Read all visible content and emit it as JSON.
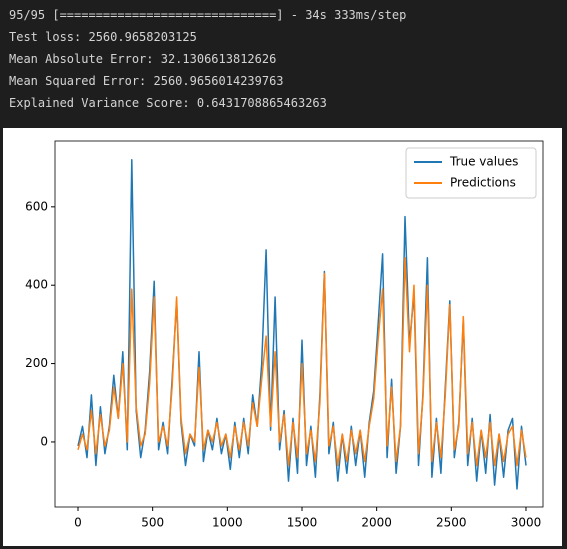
{
  "console": {
    "lines": [
      "95/95 [==============================] - 34s 333ms/step",
      "Test loss: 2560.9658203125",
      "Mean Absolute Error: 32.1306613812626",
      "Mean Squared Error: 2560.9656014239763",
      "Explained Variance Score: 0.6431708865463263"
    ]
  },
  "chart_data": {
    "type": "line",
    "x": [
      0,
      30,
      60,
      90,
      120,
      150,
      180,
      210,
      240,
      270,
      300,
      330,
      360,
      390,
      420,
      450,
      480,
      510,
      540,
      570,
      600,
      630,
      660,
      690,
      720,
      750,
      780,
      810,
      840,
      870,
      900,
      930,
      960,
      990,
      1020,
      1050,
      1080,
      1110,
      1140,
      1170,
      1200,
      1230,
      1260,
      1290,
      1320,
      1350,
      1380,
      1410,
      1440,
      1470,
      1500,
      1530,
      1560,
      1590,
      1620,
      1650,
      1680,
      1710,
      1740,
      1770,
      1800,
      1830,
      1860,
      1890,
      1920,
      1950,
      1980,
      2010,
      2040,
      2070,
      2100,
      2130,
      2160,
      2190,
      2220,
      2250,
      2280,
      2310,
      2340,
      2370,
      2400,
      2430,
      2460,
      2490,
      2520,
      2550,
      2580,
      2610,
      2640,
      2670,
      2700,
      2730,
      2760,
      2790,
      2820,
      2850,
      2880,
      2910,
      2940,
      2970,
      3000
    ],
    "series": [
      {
        "name": "True values",
        "color": "#1f77b4",
        "values": [
          -10,
          40,
          -40,
          120,
          -60,
          90,
          -30,
          40,
          170,
          60,
          230,
          -20,
          720,
          80,
          -40,
          30,
          180,
          410,
          -20,
          50,
          -30,
          160,
          360,
          50,
          -60,
          20,
          -10,
          230,
          -50,
          30,
          -20,
          60,
          -30,
          20,
          -70,
          50,
          -40,
          60,
          -30,
          120,
          40,
          200,
          490,
          30,
          370,
          -20,
          80,
          -100,
          60,
          -80,
          260,
          -60,
          40,
          -90,
          120,
          435,
          -30,
          50,
          -100,
          20,
          -80,
          40,
          -60,
          30,
          -90,
          50,
          130,
          300,
          480,
          -40,
          160,
          -80,
          40,
          575,
          250,
          380,
          -60,
          120,
          470,
          -90,
          60,
          -80,
          140,
          360,
          -40,
          50,
          310,
          -60,
          60,
          -100,
          30,
          -80,
          70,
          -110,
          20,
          -90,
          30,
          60,
          -120,
          40,
          -60
        ]
      },
      {
        "name": "Predictions",
        "color": "#ff7f0e",
        "values": [
          -20,
          20,
          -20,
          80,
          -30,
          70,
          -10,
          30,
          140,
          60,
          200,
          0,
          390,
          90,
          -10,
          20,
          150,
          370,
          0,
          40,
          -10,
          140,
          370,
          60,
          -30,
          20,
          0,
          190,
          -20,
          30,
          0,
          50,
          -10,
          20,
          -40,
          40,
          -20,
          50,
          -10,
          100,
          40,
          160,
          270,
          40,
          230,
          0,
          70,
          -60,
          50,
          -40,
          200,
          -30,
          30,
          -50,
          100,
          430,
          -10,
          40,
          -60,
          20,
          -50,
          30,
          -30,
          30,
          -50,
          40,
          110,
          260,
          390,
          -10,
          140,
          -50,
          40,
          470,
          230,
          400,
          -30,
          110,
          400,
          -50,
          50,
          -40,
          120,
          350,
          -20,
          40,
          320,
          -30,
          50,
          -60,
          30,
          -40,
          50,
          -60,
          20,
          -50,
          20,
          40,
          -60,
          30,
          -40
        ]
      }
    ],
    "xlim": [
      -154,
      3114
    ],
    "ylim": [
      -166,
      768
    ],
    "xticks": [
      0,
      500,
      1000,
      1500,
      2000,
      2500,
      3000
    ],
    "yticks": [
      0,
      200,
      400,
      600
    ],
    "legend": "upper right"
  }
}
